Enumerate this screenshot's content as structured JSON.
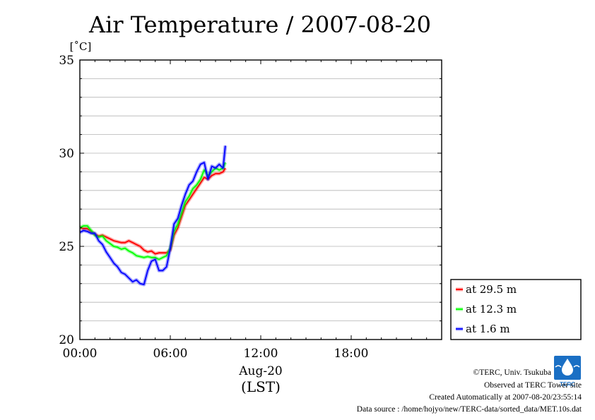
{
  "chart_data": {
    "type": "line",
    "title": "Air Temperature / 2007-08-20",
    "ylabel": "[˚C]",
    "ylim": [
      20,
      35
    ],
    "yticks": [
      "20",
      "25",
      "30",
      "35"
    ],
    "xlim": [
      0,
      24
    ],
    "xticks": [
      "00:00",
      "06:00",
      "12:00",
      "18:00"
    ],
    "xlabel_date": "Aug-20",
    "xlabel_tz": "(LST)",
    "grid": true,
    "legend_position": "bottom-right",
    "x_hours": [
      0,
      0.25,
      0.5,
      0.75,
      1.0,
      1.25,
      1.5,
      1.75,
      2.0,
      2.25,
      2.5,
      2.75,
      3.0,
      3.25,
      3.5,
      3.75,
      4.0,
      4.25,
      4.5,
      4.75,
      5.0,
      5.25,
      5.5,
      5.75,
      6.0,
      6.25,
      6.5,
      6.75,
      7.0,
      7.25,
      7.5,
      7.75,
      8.0,
      8.25,
      8.5,
      8.75,
      9.0,
      9.25,
      9.5,
      9.65
    ],
    "series": [
      {
        "name": "at 29.5 m",
        "color": "#ff0000",
        "values": [
          26.0,
          25.95,
          25.95,
          25.8,
          25.65,
          25.55,
          25.6,
          25.5,
          25.4,
          25.3,
          25.25,
          25.2,
          25.2,
          25.3,
          25.2,
          25.1,
          25.0,
          24.8,
          24.7,
          24.75,
          24.6,
          24.65,
          24.65,
          24.65,
          24.8,
          25.6,
          26.0,
          26.6,
          27.2,
          27.5,
          27.8,
          28.1,
          28.4,
          28.7,
          28.6,
          28.8,
          28.9,
          28.9,
          29.0,
          29.2
        ]
      },
      {
        "name": "at 12.3 m",
        "color": "#00ff00",
        "values": [
          26.0,
          26.1,
          26.1,
          25.85,
          25.6,
          25.5,
          25.55,
          25.3,
          25.15,
          25.0,
          24.95,
          24.85,
          24.9,
          24.75,
          24.65,
          24.5,
          24.45,
          24.4,
          24.45,
          24.4,
          24.4,
          24.3,
          24.4,
          24.5,
          24.9,
          25.8,
          26.2,
          26.8,
          27.4,
          27.7,
          28.1,
          28.3,
          28.6,
          29.1,
          28.8,
          29.0,
          29.2,
          29.1,
          29.2,
          29.5
        ]
      },
      {
        "name": "at 1.6 m",
        "color": "#0000ff",
        "values": [
          25.75,
          25.85,
          25.8,
          25.7,
          25.7,
          25.3,
          25.1,
          24.7,
          24.4,
          24.1,
          23.9,
          23.6,
          23.5,
          23.3,
          23.1,
          23.2,
          23.0,
          22.95,
          23.7,
          24.2,
          24.3,
          23.7,
          23.7,
          23.9,
          24.9,
          26.2,
          26.5,
          27.2,
          27.8,
          28.3,
          28.5,
          29.0,
          29.4,
          29.5,
          28.6,
          29.3,
          29.2,
          29.4,
          29.2,
          30.4
        ]
      }
    ]
  },
  "footer": {
    "copyright": "©TERC, Univ. Tsukuba",
    "observed": "Observed at TERC Tower site",
    "created": "Created Automatically at 2007-08-20/23:55:14",
    "source": "Data source : /home/hojyo/new/TERC-data/sorted_data/MET.10s.dat"
  },
  "logo": {
    "text": "TERC",
    "color": "#1a6fc4"
  }
}
